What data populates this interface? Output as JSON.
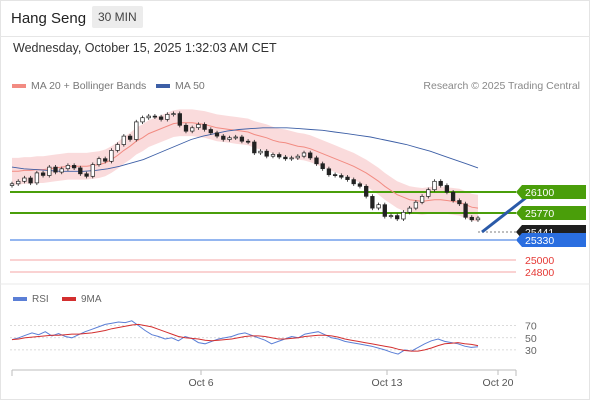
{
  "header": {
    "instrument": "Hang Seng",
    "timeframe": "30 MIN"
  },
  "timestamp": "Wednesday, October 15, 2025 1:32:03 AM CET",
  "legend": {
    "ma20": {
      "label": "MA 20 + Bollinger Bands",
      "color": "#f28b82"
    },
    "ma50": {
      "label": "MA 50",
      "color": "#3d5fa6"
    }
  },
  "credit": "Research © 2025 Trading Central",
  "levels": [
    {
      "label": "26100",
      "kind": "resistance",
      "color": "#4a9e0a"
    },
    {
      "label": "25770",
      "kind": "resistance",
      "color": "#4a9e0a"
    },
    {
      "label": "25441",
      "kind": "last",
      "color": "#222222"
    },
    {
      "label": "25330",
      "kind": "pivot",
      "color": "#2a6ee0"
    },
    {
      "label": "25000",
      "kind": "support",
      "color": "#e53935"
    },
    {
      "label": "24800",
      "kind": "support",
      "color": "#e53935"
    }
  ],
  "rsi_legend": {
    "rsi": {
      "label": "RSI",
      "color": "#5b7fd6"
    },
    "ma9": {
      "label": "9MA",
      "color": "#d32f2f"
    }
  },
  "rsi_ticks": [
    "70",
    "50",
    "30"
  ],
  "x_ticks": [
    "Oct 6",
    "Oct 13",
    "Oct 20"
  ],
  "chart_data": {
    "type": "candlestick",
    "ylim": [
      24700,
      26900
    ],
    "price": [
      25850,
      25880,
      25920,
      25860,
      25980,
      25950,
      26050,
      25990,
      26030,
      26070,
      26040,
      25970,
      25940,
      26080,
      26150,
      26120,
      26250,
      26320,
      26420,
      26380,
      26590,
      26640,
      26660,
      26650,
      26620,
      26680,
      26690,
      26550,
      26480,
      26520,
      26560,
      26500,
      26460,
      26420,
      26380,
      26400,
      26410,
      26360,
      26350,
      26220,
      26240,
      26180,
      26200,
      26170,
      26150,
      26160,
      26180,
      26220,
      26160,
      26090,
      26030,
      25960,
      25950,
      25930,
      25900,
      25850,
      25820,
      25700,
      25560,
      25600,
      25460,
      25470,
      25430,
      25510,
      25560,
      25630,
      25700,
      25780,
      25880,
      25830,
      25750,
      25650,
      25610,
      25450,
      25420,
      25441
    ],
    "ma20": [
      26000,
      26000,
      26010,
      26010,
      26020,
      26020,
      26030,
      26040,
      26050,
      26060,
      26060,
      26060,
      26060,
      26070,
      26080,
      26100,
      26140,
      26190,
      26250,
      26300,
      26360,
      26400,
      26450,
      26480,
      26510,
      26540,
      26570,
      26580,
      26580,
      26580,
      26570,
      26560,
      26540,
      26520,
      26510,
      26500,
      26490,
      26480,
      26470,
      26440,
      26420,
      26400,
      26370,
      26350,
      26340,
      26320,
      26300,
      26290,
      26270,
      26240,
      26210,
      26180,
      26150,
      26120,
      26090,
      26060,
      26020,
      25980,
      25930,
      25880,
      25820,
      25770,
      25720,
      25690,
      25660,
      25650,
      25640,
      25650,
      25660,
      25660,
      25650,
      25640,
      25630,
      25600,
      25570,
      25560
    ],
    "ma50": [
      26050,
      26030,
      26020,
      26010,
      26000,
      26000,
      26000,
      26010,
      26030,
      26060,
      26100,
      26140,
      26200,
      26260,
      26320,
      26380,
      26420,
      26450,
      26480,
      26500,
      26510,
      26520,
      26520,
      26520,
      26510,
      26500,
      26490,
      26470,
      26450,
      26430,
      26410,
      26380,
      26350,
      26320,
      26280,
      26240,
      26190,
      26140,
      26090,
      26040
    ],
    "rsi": [
      47,
      50,
      54,
      58,
      55,
      60,
      53,
      57,
      52,
      50,
      55,
      60,
      64,
      68,
      72,
      74,
      76,
      75,
      78,
      70,
      62,
      55,
      52,
      48,
      50,
      45,
      52,
      49,
      42,
      40,
      44,
      48,
      50,
      52,
      56,
      58,
      54,
      50,
      46,
      40,
      44,
      48,
      52,
      50,
      56,
      58,
      60,
      55,
      50,
      48,
      44,
      42,
      40,
      38,
      36,
      33,
      30,
      26,
      23,
      30,
      28,
      34,
      40,
      45,
      48,
      44,
      42,
      40,
      36,
      34,
      35
    ],
    "rsi_ma9": [
      47,
      48,
      50,
      51,
      52,
      53,
      54,
      54,
      55,
      56,
      56,
      57,
      58,
      60,
      62,
      65,
      67,
      69,
      71,
      72,
      70,
      68,
      64,
      60,
      56,
      52,
      50,
      49,
      48,
      46,
      45,
      46,
      47,
      48,
      50,
      52,
      53,
      53,
      52,
      50,
      48,
      48,
      49,
      50,
      52,
      53,
      54,
      54,
      53,
      51,
      48,
      46,
      44,
      42,
      40,
      38,
      36,
      34,
      31,
      29,
      28,
      28,
      30,
      33,
      37,
      40,
      41,
      42,
      40,
      39,
      37
    ],
    "rsi_ylim": [
      0,
      100
    ]
  }
}
